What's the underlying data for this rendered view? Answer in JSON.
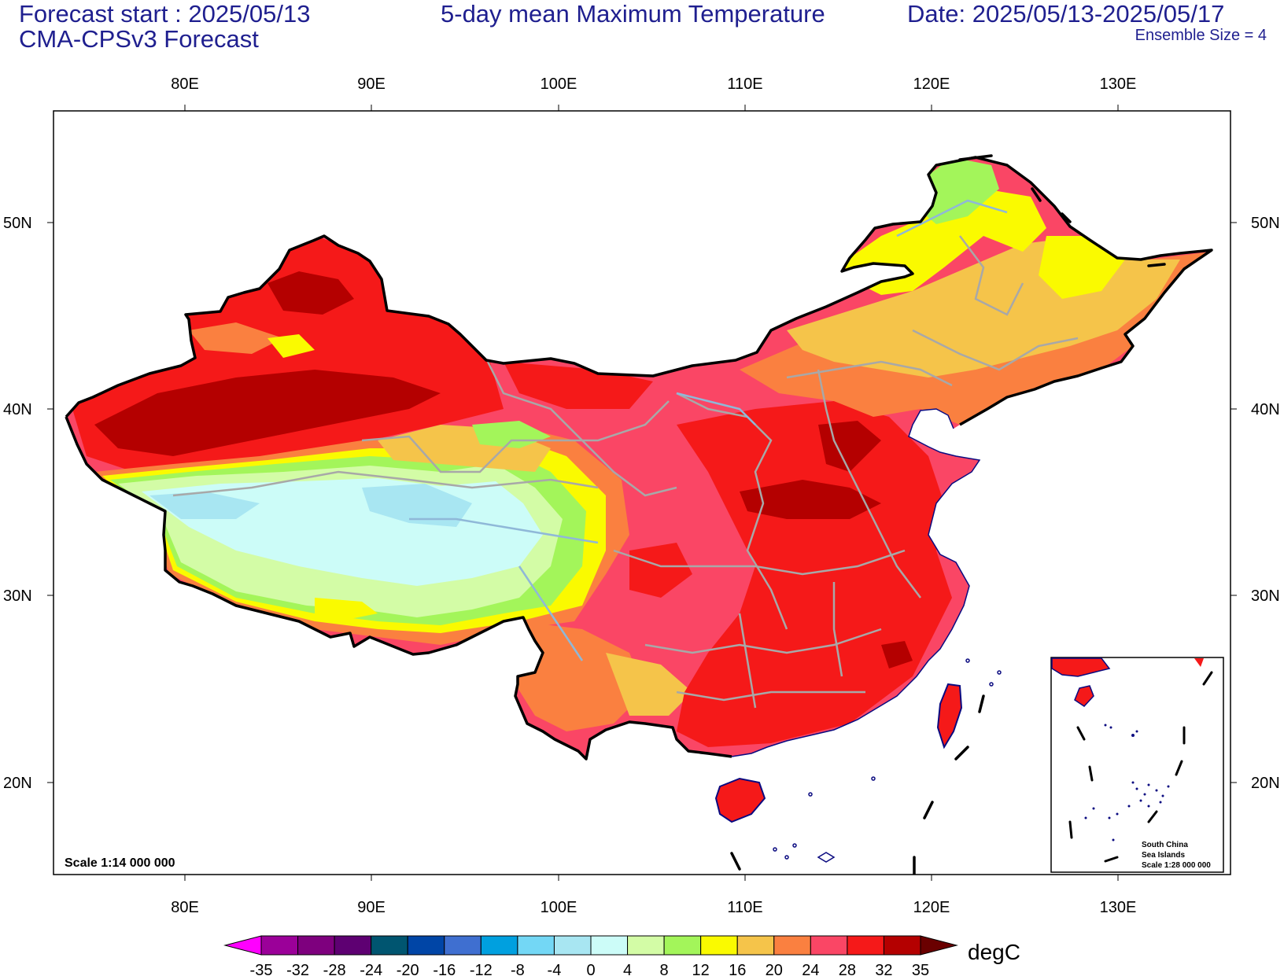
{
  "header": {
    "forecast_start": "Forecast start : 2025/05/13",
    "model": "CMA-CPSv3 Forecast",
    "title": "5-day mean Maximum Temperature",
    "date_range": "Date: 2025/05/13-2025/05/17",
    "ensemble": "Ensemble Size = 4"
  },
  "map": {
    "lon_labels": [
      "80E",
      "90E",
      "100E",
      "110E",
      "120E",
      "130E"
    ],
    "lat_labels": [
      "50N",
      "40N",
      "30N",
      "20N"
    ],
    "scale_label": "Scale 1:14 000 000",
    "inset": {
      "line1": "South China",
      "line2": "Sea Islands",
      "line3": "Scale 1:28 000 000"
    }
  },
  "colorbar": {
    "unit": "degC",
    "labels": [
      "-35",
      "-32",
      "-28",
      "-24",
      "-20",
      "-16",
      "-12",
      "-8",
      "-4",
      "0",
      "4",
      "8",
      "12",
      "16",
      "20",
      "24",
      "28",
      "32",
      "35"
    ],
    "colors": [
      "#9b0099",
      "#7e007e",
      "#5e0072",
      "#005570",
      "#0045a6",
      "#3f6fd0",
      "#00a0df",
      "#73d7f5",
      "#a8e6f2",
      "#ccfcf8",
      "#d3fca6",
      "#a3f55a",
      "#fafa00",
      "#f5c44a",
      "#fa8040",
      "#fa4665",
      "#f51919",
      "#b40000"
    ],
    "low_arrow_color": "#ff00ff",
    "high_arrow_color": "#6a0000"
  },
  "colors": {
    "title_text": "#1f1f8f",
    "boundary": "#000000",
    "province_lines": "#a8a8a8",
    "rivers": "#8fb8d8",
    "island_outline": "#0a0a80"
  }
}
